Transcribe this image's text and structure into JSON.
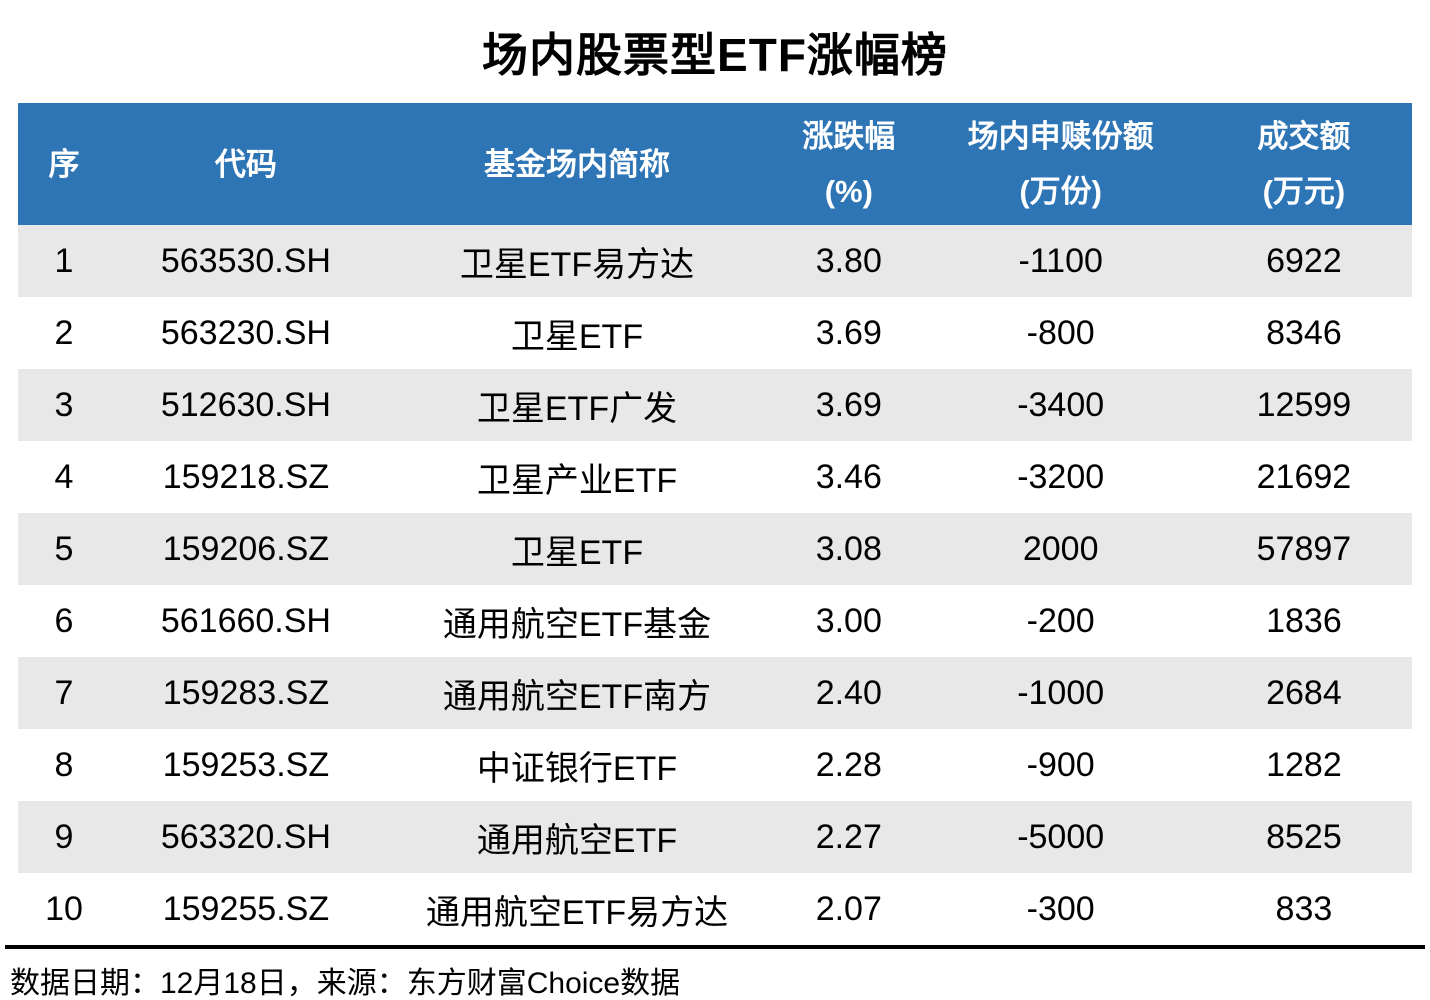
{
  "chart_data": {
    "type": "table",
    "title": "场内股票型ETF涨幅榜",
    "columns": [
      {
        "label": "序",
        "unit": ""
      },
      {
        "label": "代码",
        "unit": ""
      },
      {
        "label": "基金场内简称",
        "unit": ""
      },
      {
        "label": "涨跌幅",
        "unit": "(%)"
      },
      {
        "label": "场内申赎份额",
        "unit": "(万份)"
      },
      {
        "label": "成交额",
        "unit": "(万元)"
      }
    ],
    "rows": [
      [
        "1",
        "563530.SH",
        "卫星ETF易方达",
        "3.80",
        "-1100",
        "6922"
      ],
      [
        "2",
        "563230.SH",
        "卫星ETF",
        "3.69",
        "-800",
        "8346"
      ],
      [
        "3",
        "512630.SH",
        "卫星ETF广发",
        "3.69",
        "-3400",
        "12599"
      ],
      [
        "4",
        "159218.SZ",
        "卫星产业ETF",
        "3.46",
        "-3200",
        "21692"
      ],
      [
        "5",
        "159206.SZ",
        "卫星ETF",
        "3.08",
        "2000",
        "57897"
      ],
      [
        "6",
        "561660.SH",
        "通用航空ETF基金",
        "3.00",
        "-200",
        "1836"
      ],
      [
        "7",
        "159283.SZ",
        "通用航空ETF南方",
        "2.40",
        "-1000",
        "2684"
      ],
      [
        "8",
        "159253.SZ",
        "中证银行ETF",
        "2.28",
        "-900",
        "1282"
      ],
      [
        "9",
        "563320.SH",
        "通用航空ETF",
        "2.27",
        "-5000",
        "8525"
      ],
      [
        "10",
        "159255.SZ",
        "通用航空ETF易方达",
        "2.07",
        "-300",
        "833"
      ]
    ]
  },
  "footer": {
    "text": "数据日期：12月18日，来源：东方财富Choice数据"
  },
  "colors": {
    "header_bg": "#2E75B6",
    "header_text": "#FFFFFF",
    "row_alt_bg": "#E8E8E8",
    "row_bg": "#FFFFFF",
    "body_text": "#000000"
  }
}
